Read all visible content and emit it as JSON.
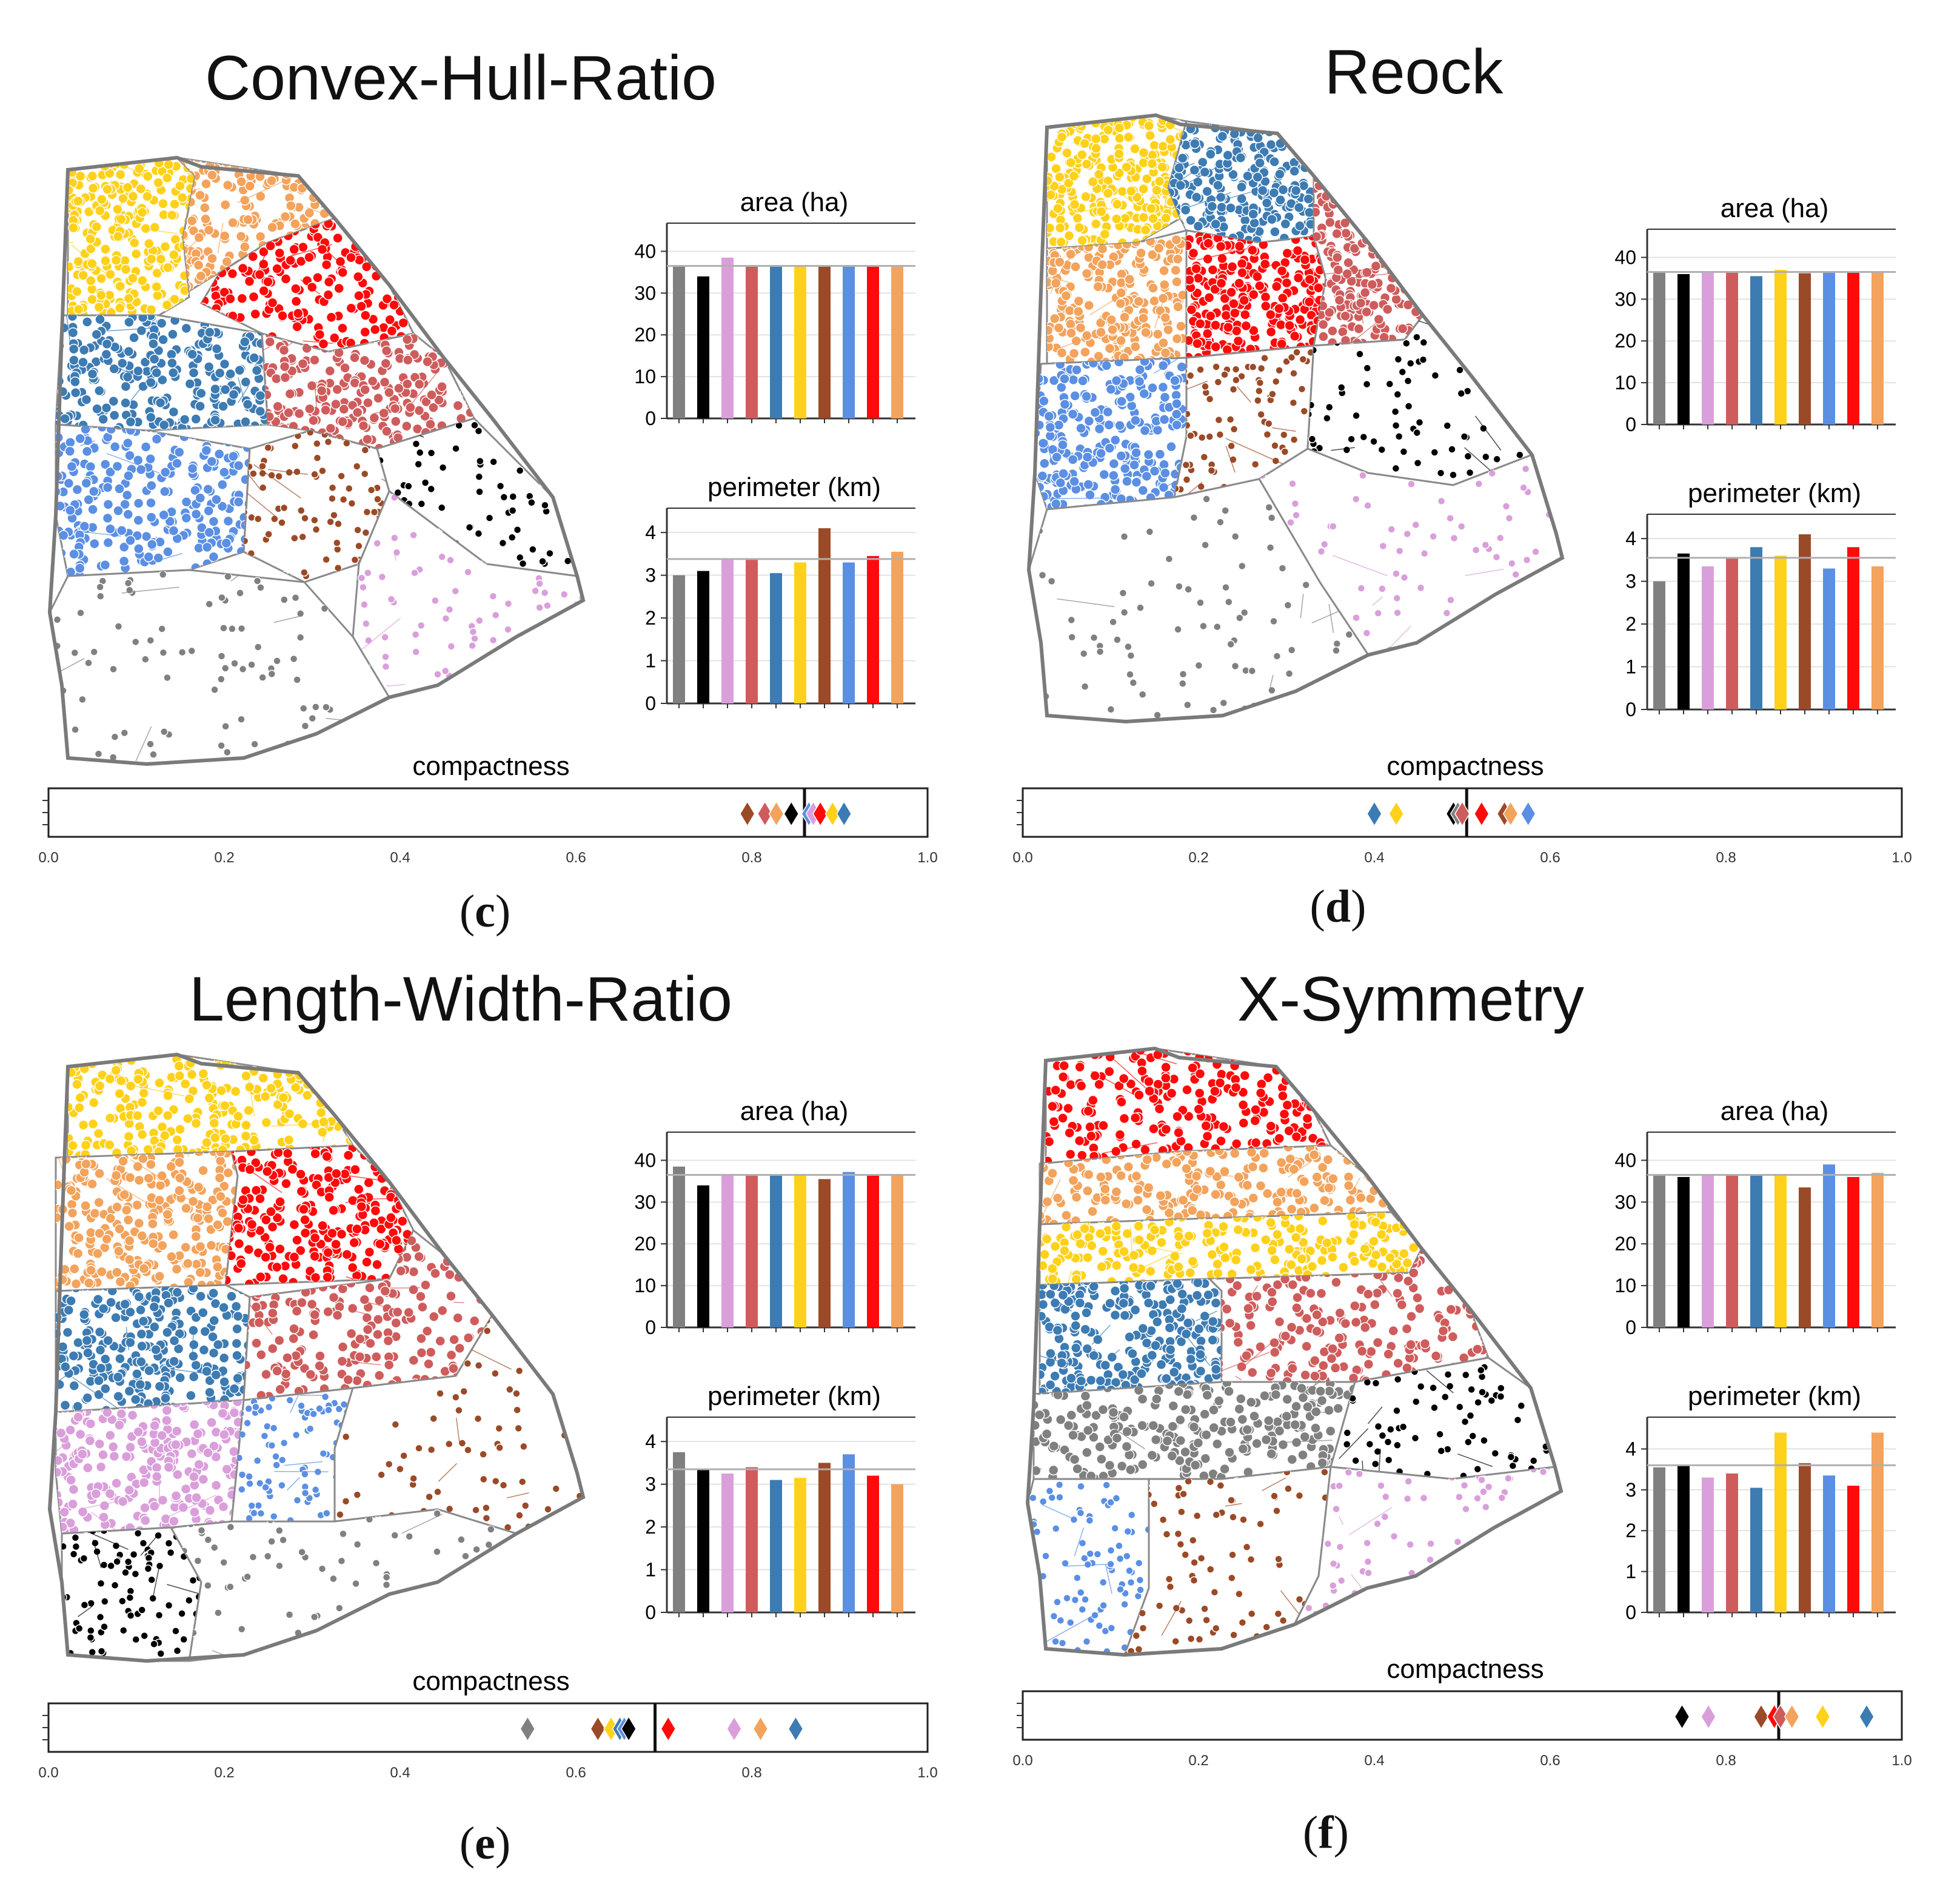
{
  "colors": {
    "gray": "#808080",
    "black": "#000000",
    "pink": "#da9fdb",
    "rose": "#cf5c5c",
    "steel": "#3d7bb3",
    "gold": "#ffd11a",
    "brown": "#9b4a27",
    "sky": "#5b8fe3",
    "red": "#ff0a0a",
    "orange": "#f3a35c",
    "outline": "#7a7a7a",
    "ref_line": "#b0b0b0"
  },
  "bar_order": [
    "gray",
    "black",
    "pink",
    "rose",
    "steel",
    "gold",
    "brown",
    "sky",
    "red",
    "orange"
  ],
  "panels": [
    {
      "title": "Convex-Hull-Ratio",
      "label_open": "(",
      "label_letter": "c",
      "label_close": ")",
      "map_regions": [
        "gold",
        "orange",
        "red",
        "steel",
        "rose",
        "sky",
        "brown",
        "black",
        "pink",
        "gray"
      ],
      "chart_data": [
        {
          "type": "bar",
          "title": "area (ha)",
          "ylim": [
            0,
            45
          ],
          "yticks": [
            0,
            10,
            20,
            30,
            40
          ],
          "reference": 36.5,
          "values": [
            36.5,
            34,
            38.5,
            36.5,
            36.5,
            36.5,
            36.5,
            36.5,
            36.5,
            36.5
          ]
        },
        {
          "type": "bar",
          "title": "perimeter (km)",
          "ylim": [
            0,
            4.4
          ],
          "yticks": [
            0,
            1,
            2,
            3,
            4
          ],
          "reference": 3.38,
          "values": [
            3.0,
            3.1,
            3.38,
            3.4,
            3.05,
            3.3,
            4.1,
            3.3,
            3.45,
            3.55
          ]
        },
        {
          "type": "scatter",
          "title": "compactness",
          "xlim": [
            0,
            1
          ],
          "xticks": [
            "0.0",
            "0.2",
            "0.4",
            "0.6",
            "0.8",
            "1.0"
          ],
          "mean": 0.86,
          "points": [
            [
              "brown",
              0.795
            ],
            [
              "rose",
              0.815
            ],
            [
              "orange",
              0.828
            ],
            [
              "black",
              0.845
            ],
            [
              "sky",
              0.865
            ],
            [
              "pink",
              0.87
            ],
            [
              "red",
              0.878
            ],
            [
              "gold",
              0.892
            ],
            [
              "steel",
              0.905
            ]
          ]
        }
      ]
    },
    {
      "title": "Reock",
      "label_open": "(",
      "label_letter": "d",
      "label_close": ")",
      "map_regions": [
        "gold",
        "steel",
        "orange",
        "red",
        "rose",
        "sky",
        "brown",
        "black",
        "pink",
        "gray"
      ],
      "chart_data": [
        {
          "type": "bar",
          "title": "area (ha)",
          "ylim": [
            0,
            45
          ],
          "yticks": [
            0,
            10,
            20,
            30,
            40
          ],
          "reference": 36.5,
          "values": [
            36.5,
            36,
            36.3,
            36.3,
            35.5,
            37,
            36.2,
            36.3,
            36.3,
            36.3
          ]
        },
        {
          "type": "bar",
          "title": "perimeter (km)",
          "ylim": [
            0,
            4.4
          ],
          "yticks": [
            0,
            1,
            2,
            3,
            4
          ],
          "reference": 3.55,
          "values": [
            3.0,
            3.65,
            3.35,
            3.55,
            3.8,
            3.6,
            4.1,
            3.3,
            3.8,
            3.35
          ]
        },
        {
          "type": "scatter",
          "title": "compactness",
          "xlim": [
            0,
            1
          ],
          "xticks": [
            "0.0",
            "0.2",
            "0.4",
            "0.6",
            "0.8",
            "1.0"
          ],
          "mean": 0.505,
          "points": [
            [
              "steel",
              0.4
            ],
            [
              "gold",
              0.425
            ],
            [
              "black",
              0.49
            ],
            [
              "gray",
              0.495
            ],
            [
              "rose",
              0.5
            ],
            [
              "red",
              0.522
            ],
            [
              "brown",
              0.548
            ],
            [
              "orange",
              0.555
            ],
            [
              "sky",
              0.575
            ]
          ]
        }
      ]
    },
    {
      "title": "Length-Width-Ratio",
      "label_open": "(",
      "label_letter": "e",
      "label_close": ")",
      "map_regions": [
        "gold",
        "orange",
        "red",
        "steel",
        "rose",
        "pink",
        "sky",
        "brown",
        "black",
        "gray"
      ],
      "chart_data": [
        {
          "type": "bar",
          "title": "area (ha)",
          "ylim": [
            0,
            45
          ],
          "yticks": [
            0,
            10,
            20,
            30,
            40
          ],
          "reference": 36.5,
          "values": [
            38.5,
            34,
            36.5,
            36.5,
            36.5,
            36.5,
            35.5,
            37.2,
            36.5,
            36.5
          ]
        },
        {
          "type": "bar",
          "title": "perimeter (km)",
          "ylim": [
            0,
            4.4
          ],
          "yticks": [
            0,
            1,
            2,
            3,
            4
          ],
          "reference": 3.35,
          "values": [
            3.75,
            3.35,
            3.25,
            3.4,
            3.1,
            3.15,
            3.5,
            3.7,
            3.2,
            3.0
          ]
        },
        {
          "type": "scatter",
          "title": "compactness",
          "xlim": [
            0,
            1
          ],
          "xticks": [
            "0.0",
            "0.2",
            "0.4",
            "0.6",
            "0.8",
            "1.0"
          ],
          "mean": 0.69,
          "points": [
            [
              "gray",
              0.545
            ],
            [
              "brown",
              0.625
            ],
            [
              "gold",
              0.64
            ],
            [
              "steel",
              0.65
            ],
            [
              "sky",
              0.655
            ],
            [
              "black",
              0.66
            ],
            [
              "red",
              0.705
            ],
            [
              "pink",
              0.78
            ],
            [
              "orange",
              0.81
            ],
            [
              "steel",
              0.85
            ]
          ]
        }
      ]
    },
    {
      "title": "X-Symmetry",
      "label_open": "(",
      "label_letter": "f",
      "label_close": ")",
      "map_regions": [
        "red",
        "orange",
        "gold",
        "steel",
        "rose",
        "gray",
        "black",
        "sky",
        "brown",
        "pink"
      ],
      "chart_data": [
        {
          "type": "bar",
          "title": "area (ha)",
          "ylim": [
            0,
            45
          ],
          "yticks": [
            0,
            10,
            20,
            30,
            40
          ],
          "reference": 36.5,
          "values": [
            36.3,
            36,
            36.5,
            36.3,
            36.3,
            36.5,
            33.5,
            39,
            36,
            37
          ]
        },
        {
          "type": "bar",
          "title": "perimeter (km)",
          "ylim": [
            0,
            4.6
          ],
          "yticks": [
            0,
            1,
            2,
            3,
            4
          ],
          "reference": 3.6,
          "values": [
            3.55,
            3.6,
            3.3,
            3.4,
            3.05,
            4.4,
            3.65,
            3.35,
            3.1,
            4.4
          ]
        },
        {
          "type": "scatter",
          "title": "compactness",
          "xlim": [
            0,
            1
          ],
          "xticks": [
            "0.0",
            "0.2",
            "0.4",
            "0.6",
            "0.8",
            "1.0"
          ],
          "mean": 0.86,
          "points": [
            [
              "black",
              0.75
            ],
            [
              "pink",
              0.78
            ],
            [
              "brown",
              0.84
            ],
            [
              "red",
              0.855
            ],
            [
              "rose",
              0.862
            ],
            [
              "orange",
              0.875
            ],
            [
              "gold",
              0.91
            ],
            [
              "steel",
              0.96
            ]
          ]
        }
      ]
    }
  ]
}
